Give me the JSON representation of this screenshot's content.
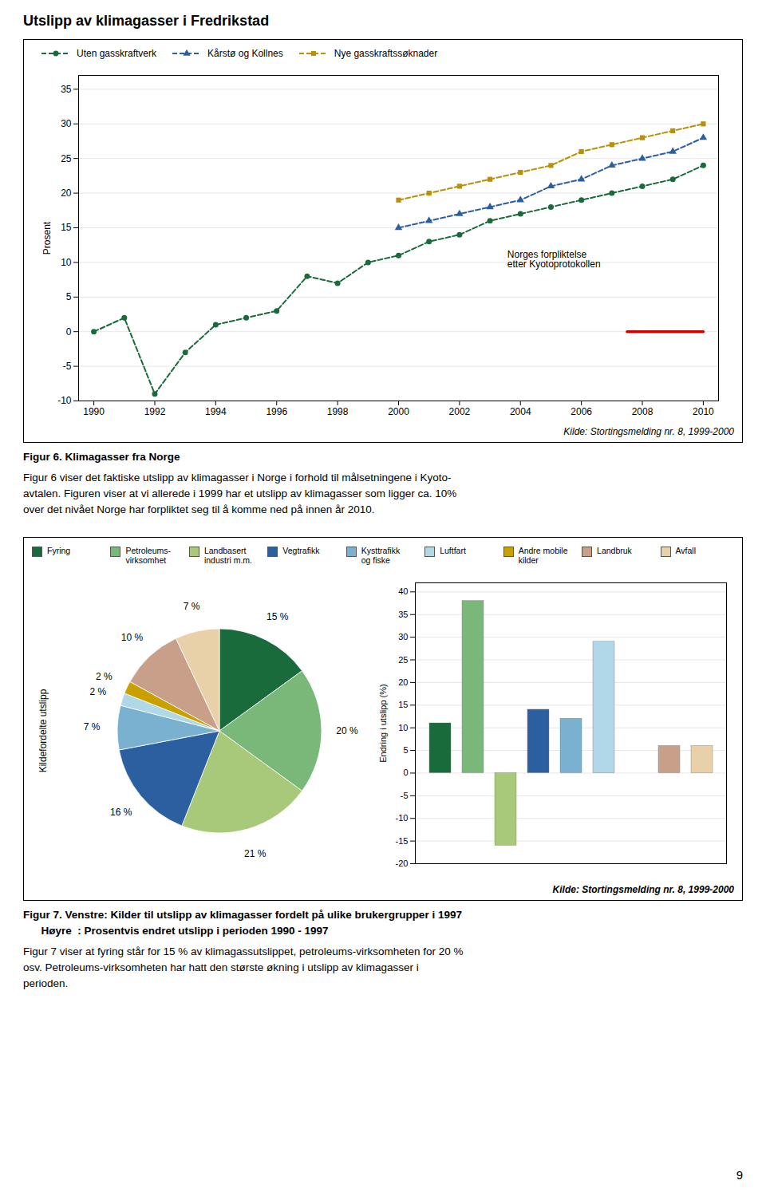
{
  "title": "Utslipp av klimagasser i Fredrikstad",
  "page_number": "9",
  "chart_data": [
    {
      "type": "line",
      "title": "Figur 6. Klimagasser fra Norge",
      "caption": [
        "Figur 6 viser det faktiske utslipp av klimagasser i Norge i forhold til målsetningene i Kyoto-",
        "avtalen. Figuren viser at vi allerede i 1999 har et utslipp av klimagasser som ligger ca. 10%",
        "over det nivået Norge har forpliktet seg til å komme ned på innen år 2010."
      ],
      "source": "Kilde: Stortingsmelding nr. 8, 1999-2000",
      "x": [
        1990,
        1991,
        1992,
        1993,
        1994,
        1995,
        1996,
        1997,
        1998,
        1999,
        2000,
        2001,
        2002,
        2003,
        2004,
        2005,
        2006,
        2007,
        2008,
        2009,
        2010
      ],
      "series": [
        {
          "name": "Uten gasskraftverk",
          "color": "#1a6b3c",
          "marker": "circle",
          "line_style": "dashed",
          "values": [
            0,
            2,
            -9,
            -3,
            1,
            2,
            3,
            8,
            7,
            10,
            11,
            13,
            14,
            16,
            17,
            18,
            19,
            20,
            21,
            22,
            24
          ]
        },
        {
          "name": "Kårstø og Kollnes",
          "color": "#2b5fa0",
          "marker": "triangle",
          "line_style": "dashed",
          "values": [
            null,
            null,
            null,
            null,
            null,
            null,
            null,
            null,
            null,
            null,
            15,
            16,
            17,
            18,
            19,
            21,
            22,
            24,
            25,
            26,
            28
          ]
        },
        {
          "name": "Nye gasskraftssøknader",
          "color": "#b8900a",
          "marker": "square",
          "line_style": "dashed",
          "values": [
            null,
            null,
            null,
            null,
            null,
            null,
            null,
            null,
            null,
            null,
            19,
            20,
            21,
            22,
            23,
            24,
            26,
            27,
            28,
            29,
            30
          ]
        }
      ],
      "annotations": [
        {
          "text": "Norges forpliktelse\netter Kyotoprotokollen",
          "x": [
            2007.5,
            2010
          ],
          "y": 0,
          "color": "#cc0000"
        }
      ],
      "ylabel": "Prosent",
      "xlim": [
        1989.5,
        2010.5
      ],
      "xticks": [
        1990,
        1992,
        1994,
        1996,
        1998,
        2000,
        2002,
        2004,
        2006,
        2008,
        2010
      ],
      "ylim": [
        -10,
        37
      ],
      "yticks": [
        -10,
        -5,
        0,
        5,
        10,
        15,
        20,
        25,
        30,
        35
      ],
      "grid": true,
      "legend": "top"
    },
    {
      "type": "pie",
      "title": [
        "Figur 7. Venstre: Kilder til utslipp av klimagasser fordelt på ulike brukergrupper i 1997",
        "      Høyre  : Prosentvis endret utslipp i perioden 1990 - 1997"
      ],
      "caption": [
        "Figur 7 viser at fyring står for 15 % av klimagassutslippet, petroleums-virksomheten for 20 %",
        "osv. Petroleums-virksomheten har hatt den største økning i utslipp av klimagasser i",
        "perioden."
      ],
      "ylabel": "Kildefordelte utslipp",
      "categories": [
        "Fyring",
        "Petroleums-\nvirksomhet",
        "Landbasert\nindustri m.m.",
        "Vegtrafikk",
        "Kysttrafikk\nog fiske",
        "Luftfart",
        "Andre mobile\nkilder",
        "Landbruk",
        "Avfall"
      ],
      "values": [
        15,
        20,
        21,
        16,
        7,
        2,
        2,
        10,
        7
      ],
      "value_labels": [
        "15 %",
        "20 %",
        "21 %",
        "16 %",
        "7 %",
        "2 %",
        "2 %",
        "10 %",
        "7 %"
      ],
      "colors": [
        "#1a6b3c",
        "#7ab87a",
        "#a8c87a",
        "#2b5fa0",
        "#7ab0d0",
        "#b0d8e8",
        "#c8a000",
        "#c8a08a",
        "#e8d0a8"
      ],
      "data_labels": true,
      "legend": "top"
    },
    {
      "type": "bar",
      "source": "Kilde: Stortingsmelding nr. 8, 1999-2000",
      "categories": [
        "Fyring",
        "Petroleums-\nvirksomhet",
        "Landbasert\nindustri m.m.",
        "Vegtrafikk",
        "Kysttrafikk\nog fiske",
        "Luftfart",
        "Andre mobile\nkilder",
        "Landbruk",
        "Avfall"
      ],
      "values": [
        11,
        38,
        -16,
        14,
        12,
        29,
        0,
        6,
        6
      ],
      "colors": [
        "#1a6b3c",
        "#7ab87a",
        "#a8c87a",
        "#2b5fa0",
        "#7ab0d0",
        "#b0d8e8",
        "#c8a000",
        "#c8a08a",
        "#e8d0a8"
      ],
      "ylabel": "Endring i utslipp (%)",
      "ylim": [
        -20,
        42
      ],
      "yticks": [
        -20,
        -15,
        -10,
        -5,
        0,
        5,
        10,
        15,
        20,
        25,
        30,
        35,
        40
      ],
      "grid": true,
      "tick_labels": "y"
    }
  ]
}
